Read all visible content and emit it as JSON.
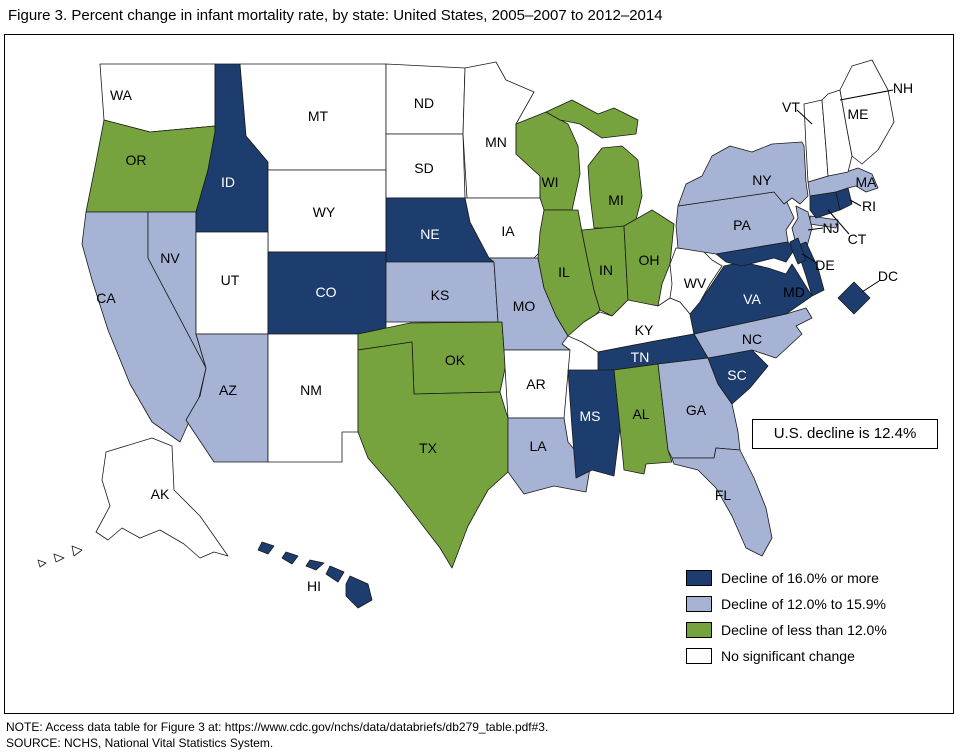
{
  "figure": {
    "title": "Figure 3. Percent change in infant mortality rate, by state: United States, 2005–2007 to 2012–2014",
    "note": "NOTE: Access data table for Figure 3 at: https://www.cdc.gov/nchs/data/databriefs/db279_table.pdf#3.",
    "source": "SOURCE: NCHS, National Vital Statistics System."
  },
  "annotation_box": {
    "text": "U.S. decline is 12.4%"
  },
  "colors": {
    "decline_16_plus": "#1c3d6e",
    "decline_12_to_15_9": "#a6b3d4",
    "decline_less_than_12": "#76a33d",
    "no_significant_change": "#ffffff",
    "state_border": "#1a1a1a"
  },
  "chart_data": {
    "type": "choropleth",
    "geography": "United States, states and DC (AK and HI inset)",
    "metric": "Percent change in infant mortality rate, 2005–2007 to 2012–2014",
    "us_decline_text": "U.S. decline is 12.4%",
    "legend_position": "bottom-right",
    "categories": [
      {
        "key": "decline_16_plus",
        "label": "Decline of 16.0% or more",
        "color": "#1c3d6e",
        "dark": true,
        "states": [
          "ID",
          "NE",
          "CO",
          "TN",
          "MS",
          "SC",
          "VA",
          "MD",
          "DE",
          "DC",
          "CT",
          "RI",
          "HI"
        ]
      },
      {
        "key": "decline_12_to_15_9",
        "label": "Decline of 12.0% to 15.9%",
        "color": "#a6b3d4",
        "dark": false,
        "states": [
          "CA",
          "NV",
          "AZ",
          "KS",
          "MO",
          "LA",
          "NC",
          "GA",
          "FL",
          "PA",
          "NJ",
          "NY",
          "MA"
        ]
      },
      {
        "key": "decline_less_than_12",
        "label": "Decline of less than 12.0%",
        "color": "#76a33d",
        "dark": false,
        "states": [
          "OR",
          "TX",
          "OK",
          "WI",
          "MI",
          "IL",
          "IN",
          "OH",
          "AL"
        ]
      },
      {
        "key": "no_significant_change",
        "label": "No significant change",
        "color": "#ffffff",
        "dark": false,
        "states": [
          "WA",
          "MT",
          "WY",
          "UT",
          "NM",
          "ND",
          "SD",
          "MN",
          "IA",
          "AR",
          "KY",
          "WV",
          "VT",
          "NH",
          "ME",
          "AK"
        ]
      }
    ]
  }
}
